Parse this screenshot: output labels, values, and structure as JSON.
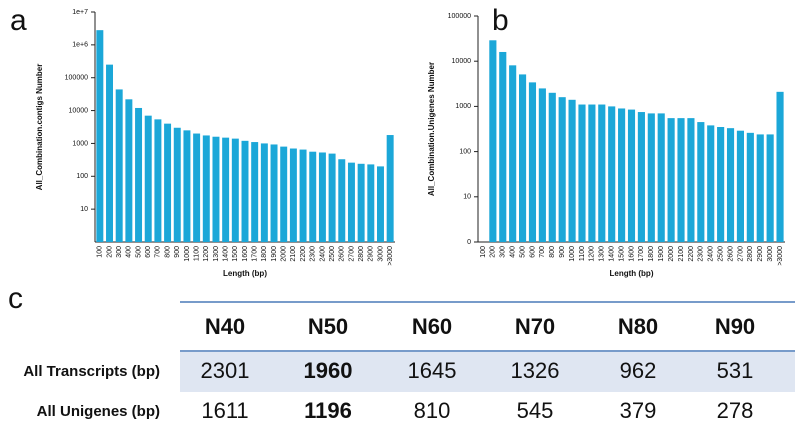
{
  "chart_data": [
    {
      "type": "bar",
      "panel": "a",
      "y_label": "All_Combination.contigs Number",
      "x_label": "Length (bp)",
      "log_scale": true,
      "color": "#1ba7d8",
      "categories": [
        "100",
        "200",
        "300",
        "400",
        "500",
        "600",
        "700",
        "800",
        "900",
        "1000",
        "1100",
        "1200",
        "1300",
        "1400",
        "1500",
        "1600",
        "1700",
        "1800",
        "1900",
        "2000",
        "2100",
        "2200",
        "2300",
        "2400",
        "2500",
        "2600",
        "2700",
        "2800",
        "2900",
        "3000",
        ">3000"
      ],
      "values": [
        2800000,
        250000,
        44000,
        22000,
        12000,
        7000,
        5400,
        4000,
        3000,
        2500,
        2000,
        1750,
        1600,
        1500,
        1400,
        1200,
        1100,
        1000,
        930,
        800,
        700,
        650,
        560,
        530,
        490,
        330,
        260,
        240,
        230,
        200,
        1800
      ],
      "ylim": [
        1,
        10000000
      ],
      "yticks": [
        10,
        100,
        1000,
        10000,
        100000,
        {
          "value": 1000000,
          "label": "1e+6"
        },
        {
          "value": 10000000,
          "label": "1e+7"
        }
      ]
    },
    {
      "type": "bar",
      "panel": "b",
      "y_label": "All_Combination.Unigenes Number",
      "x_label": "Length (bp)",
      "log_scale": true,
      "color": "#1ba7d8",
      "categories": [
        "100",
        "200",
        "300",
        "400",
        "500",
        "600",
        "700",
        "800",
        "900",
        "1000",
        "1100",
        "1200",
        "1300",
        "1400",
        "1500",
        "1600",
        "1700",
        "1800",
        "1900",
        "2000",
        "2100",
        "2200",
        "2300",
        "2400",
        "2500",
        "2600",
        "2700",
        "2800",
        "2900",
        "3000",
        ">3000"
      ],
      "values": [
        0,
        29000,
        16000,
        8100,
        5100,
        3400,
        2500,
        2000,
        1600,
        1400,
        1100,
        1100,
        1100,
        1000,
        900,
        850,
        750,
        700,
        700,
        550,
        550,
        550,
        450,
        380,
        350,
        330,
        290,
        260,
        240,
        240,
        2100
      ],
      "ylim": [
        1,
        100000
      ],
      "yticks": [
        0,
        10,
        100,
        1000,
        10000,
        100000
      ]
    }
  ],
  "table": {
    "panel": "c",
    "columns": [
      "N40",
      "N50",
      "N60",
      "N70",
      "N80",
      "N90"
    ],
    "rows": [
      {
        "label": "All Transcripts (bp)",
        "values": [
          "2301",
          "1960",
          "1645",
          "1326",
          "962",
          "531"
        ]
      },
      {
        "label": "All Unigenes (bp)",
        "values": [
          "1611",
          "1196",
          "810",
          "545",
          "379",
          "278"
        ]
      }
    ]
  }
}
